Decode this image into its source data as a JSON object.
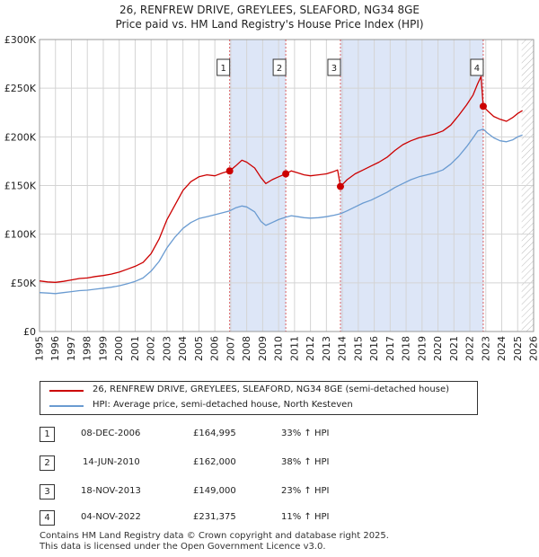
{
  "title": {
    "line1": "26, RENFREW DRIVE, GREYLEES, SLEAFORD, NG34 8GE",
    "line2": "Price paid vs. HM Land Registry's House Price Index (HPI)"
  },
  "colors": {
    "red": "#cc0000",
    "blue": "#6a9bd1",
    "shade": "#dde6f7",
    "grid": "#d4d4d4",
    "hatch": "#bbbbbb"
  },
  "chart_data": {
    "type": "line",
    "title": "26, RENFREW DRIVE, GREYLEES, SLEAFORD, NG34 8GE",
    "xlim": [
      1995,
      2026
    ],
    "ylim": [
      0,
      300000
    ],
    "x_ticks": [
      1995,
      1996,
      1997,
      1998,
      1999,
      2000,
      2001,
      2002,
      2003,
      2004,
      2005,
      2006,
      2007,
      2008,
      2009,
      2010,
      2011,
      2012,
      2013,
      2014,
      2015,
      2016,
      2017,
      2018,
      2019,
      2020,
      2021,
      2022,
      2023,
      2024,
      2025,
      2026
    ],
    "y_ticks": [
      {
        "value": 0,
        "label": "£0"
      },
      {
        "value": 50000,
        "label": "£50K"
      },
      {
        "value": 100000,
        "label": "£100K"
      },
      {
        "value": 150000,
        "label": "£150K"
      },
      {
        "value": 200000,
        "label": "£200K"
      },
      {
        "value": 250000,
        "label": "£250K"
      },
      {
        "value": 300000,
        "label": "£300K"
      }
    ],
    "shaded_ranges": [
      [
        2006.93,
        2010.45
      ],
      [
        2013.88,
        2022.84
      ]
    ],
    "hatched_from": 2025.25,
    "series": [
      {
        "name": "26, RENFREW DRIVE, GREYLEES, SLEAFORD, NG34 8GE (semi-detached house)",
        "color": "#cc0000",
        "points": [
          [
            1995.0,
            52000
          ],
          [
            1995.5,
            51000
          ],
          [
            1996.0,
            50500
          ],
          [
            1996.5,
            51500
          ],
          [
            1997.0,
            53000
          ],
          [
            1997.5,
            54500
          ],
          [
            1998.0,
            55000
          ],
          [
            1998.5,
            56500
          ],
          [
            1999.0,
            57500
          ],
          [
            1999.5,
            59000
          ],
          [
            2000.0,
            61000
          ],
          [
            2000.5,
            64000
          ],
          [
            2001.0,
            67000
          ],
          [
            2001.5,
            71000
          ],
          [
            2002.0,
            80000
          ],
          [
            2002.5,
            95000
          ],
          [
            2003.0,
            115000
          ],
          [
            2003.5,
            130000
          ],
          [
            2004.0,
            145000
          ],
          [
            2004.5,
            154000
          ],
          [
            2005.0,
            159000
          ],
          [
            2005.5,
            161000
          ],
          [
            2006.0,
            160000
          ],
          [
            2006.5,
            163000
          ],
          [
            2006.93,
            164995
          ],
          [
            2007.3,
            170000
          ],
          [
            2007.7,
            176000
          ],
          [
            2008.0,
            174000
          ],
          [
            2008.5,
            168000
          ],
          [
            2008.9,
            158000
          ],
          [
            2009.2,
            152000
          ],
          [
            2009.6,
            156000
          ],
          [
            2010.0,
            159000
          ],
          [
            2010.45,
            162000
          ],
          [
            2010.8,
            165000
          ],
          [
            2011.2,
            163000
          ],
          [
            2011.6,
            161000
          ],
          [
            2012.0,
            160000
          ],
          [
            2012.5,
            161000
          ],
          [
            2013.0,
            162000
          ],
          [
            2013.4,
            164000
          ],
          [
            2013.7,
            166000
          ],
          [
            2013.88,
            149000
          ],
          [
            2014.3,
            156000
          ],
          [
            2014.8,
            162000
          ],
          [
            2015.3,
            166000
          ],
          [
            2015.8,
            170000
          ],
          [
            2016.3,
            174000
          ],
          [
            2016.8,
            179000
          ],
          [
            2017.3,
            186000
          ],
          [
            2017.8,
            192000
          ],
          [
            2018.3,
            196000
          ],
          [
            2018.8,
            199000
          ],
          [
            2019.3,
            201000
          ],
          [
            2019.8,
            203000
          ],
          [
            2020.3,
            206000
          ],
          [
            2020.8,
            212000
          ],
          [
            2021.3,
            222000
          ],
          [
            2021.8,
            233000
          ],
          [
            2022.2,
            243000
          ],
          [
            2022.5,
            255000
          ],
          [
            2022.7,
            262000
          ],
          [
            2022.84,
            231375
          ],
          [
            2023.1,
            227000
          ],
          [
            2023.5,
            221000
          ],
          [
            2023.9,
            218000
          ],
          [
            2024.3,
            216000
          ],
          [
            2024.7,
            220000
          ],
          [
            2025.0,
            224000
          ],
          [
            2025.3,
            227000
          ]
        ]
      },
      {
        "name": "HPI: Average price, semi-detached house, North Kesteven",
        "color": "#6a9bd1",
        "points": [
          [
            1995.0,
            40000
          ],
          [
            1995.5,
            39500
          ],
          [
            1996.0,
            39000
          ],
          [
            1996.5,
            40000
          ],
          [
            1997.0,
            41000
          ],
          [
            1997.5,
            42000
          ],
          [
            1998.0,
            42500
          ],
          [
            1998.5,
            43500
          ],
          [
            1999.0,
            44500
          ],
          [
            1999.5,
            45500
          ],
          [
            2000.0,
            47000
          ],
          [
            2000.5,
            49000
          ],
          [
            2001.0,
            51500
          ],
          [
            2001.5,
            55000
          ],
          [
            2002.0,
            62000
          ],
          [
            2002.5,
            72000
          ],
          [
            2003.0,
            86000
          ],
          [
            2003.5,
            97000
          ],
          [
            2004.0,
            106000
          ],
          [
            2004.5,
            112000
          ],
          [
            2005.0,
            116000
          ],
          [
            2005.5,
            118000
          ],
          [
            2006.0,
            120000
          ],
          [
            2006.5,
            122000
          ],
          [
            2006.93,
            124000
          ],
          [
            2007.3,
            127000
          ],
          [
            2007.7,
            129000
          ],
          [
            2008.0,
            128000
          ],
          [
            2008.5,
            123000
          ],
          [
            2008.9,
            113000
          ],
          [
            2009.2,
            109000
          ],
          [
            2009.6,
            112000
          ],
          [
            2010.0,
            115000
          ],
          [
            2010.45,
            117500
          ],
          [
            2010.8,
            119000
          ],
          [
            2011.2,
            118000
          ],
          [
            2011.6,
            117000
          ],
          [
            2012.0,
            116500
          ],
          [
            2012.5,
            117000
          ],
          [
            2013.0,
            118000
          ],
          [
            2013.5,
            119500
          ],
          [
            2013.88,
            121000
          ],
          [
            2014.3,
            124000
          ],
          [
            2014.8,
            128000
          ],
          [
            2015.3,
            132000
          ],
          [
            2015.8,
            135000
          ],
          [
            2016.3,
            139000
          ],
          [
            2016.8,
            143000
          ],
          [
            2017.3,
            148000
          ],
          [
            2017.8,
            152000
          ],
          [
            2018.3,
            156000
          ],
          [
            2018.8,
            159000
          ],
          [
            2019.3,
            161000
          ],
          [
            2019.8,
            163000
          ],
          [
            2020.3,
            166000
          ],
          [
            2020.8,
            172000
          ],
          [
            2021.3,
            180000
          ],
          [
            2021.8,
            190000
          ],
          [
            2022.2,
            199000
          ],
          [
            2022.5,
            206000
          ],
          [
            2022.84,
            208000
          ],
          [
            2023.1,
            204000
          ],
          [
            2023.5,
            199000
          ],
          [
            2023.9,
            196000
          ],
          [
            2024.3,
            195000
          ],
          [
            2024.7,
            197000
          ],
          [
            2025.0,
            200000
          ],
          [
            2025.3,
            202000
          ]
        ]
      }
    ],
    "markers": [
      {
        "label": "1",
        "x": 2006.93,
        "y": 164995
      },
      {
        "label": "2",
        "x": 2010.45,
        "y": 162000
      },
      {
        "label": "3",
        "x": 2013.88,
        "y": 149000
      },
      {
        "label": "4",
        "x": 2022.84,
        "y": 231375
      }
    ]
  },
  "legend": {
    "red_label": "26, RENFREW DRIVE, GREYLEES, SLEAFORD, NG34 8GE (semi-detached house)",
    "blue_label": "HPI: Average price, semi-detached house, North Kesteven"
  },
  "transactions": [
    {
      "num": "1",
      "date": "08-DEC-2006",
      "price": "£164,995",
      "hpi": "33% ↑ HPI"
    },
    {
      "num": "2",
      "date": "14-JUN-2010",
      "price": "£162,000",
      "hpi": "38% ↑ HPI"
    },
    {
      "num": "3",
      "date": "18-NOV-2013",
      "price": "£149,000",
      "hpi": "23% ↑ HPI"
    },
    {
      "num": "4",
      "date": "04-NOV-2022",
      "price": "£231,375",
      "hpi": "11% ↑ HPI"
    }
  ],
  "footer": {
    "line1": "Contains HM Land Registry data © Crown copyright and database right 2025.",
    "line2": "This data is licensed under the Open Government Licence v3.0."
  }
}
